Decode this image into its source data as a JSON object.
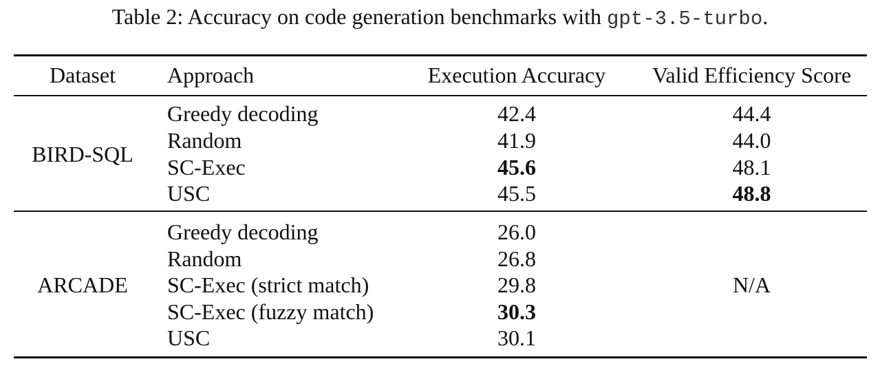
{
  "caption": {
    "prefix": "Table 2: Accuracy on code generation benchmarks with ",
    "model": "gpt-3.5-turbo",
    "suffix": "."
  },
  "headers": {
    "dataset": "Dataset",
    "approach": "Approach",
    "exec": "Execution Accuracy",
    "ves": "Valid Efficiency Score"
  },
  "groups": [
    {
      "dataset": "BIRD-SQL",
      "rows": [
        {
          "approach": "Greedy decoding",
          "exec": "42.4",
          "ves": "44.4"
        },
        {
          "approach": "Random",
          "exec": "41.9",
          "ves": "44.0"
        },
        {
          "approach": "SC-Exec",
          "exec": "45.6",
          "ves": "48.1"
        },
        {
          "approach": "USC",
          "exec": "45.5",
          "ves": "48.8"
        }
      ]
    },
    {
      "dataset": "ARCADE",
      "ves": "N/A",
      "rows": [
        {
          "approach": "Greedy decoding",
          "exec": "26.0"
        },
        {
          "approach": "Random",
          "exec": "26.8"
        },
        {
          "approach": "SC-Exec (strict match)",
          "exec": "29.8"
        },
        {
          "approach": "SC-Exec (fuzzy match)",
          "exec": "30.3"
        },
        {
          "approach": "USC",
          "exec": "30.1"
        }
      ]
    }
  ]
}
